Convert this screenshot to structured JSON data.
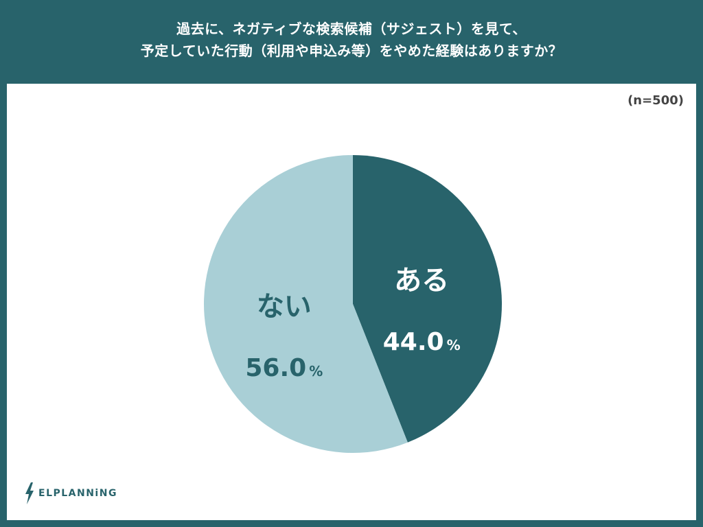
{
  "header": {
    "title_line1": "過去に、ネガティブな検索候補（サジェスト）を見て、",
    "title_line2": "予定していた行動（利用や申込み等）をやめた経験はありますか？"
  },
  "sample_size": "(n=500)",
  "brand": {
    "logo_text": "ELPLANNiNG",
    "icon": "lightning-bolt-icon"
  },
  "colors": {
    "header_bg": "#28636b",
    "slice_yes": "#28636b",
    "slice_no": "#a9cfd6",
    "label_yes": "#ffffff",
    "label_no": "#28636b"
  },
  "chart_data": {
    "type": "pie",
    "slices": [
      {
        "label": "ある",
        "value": 44.0,
        "value_text": "44.0",
        "unit": "%",
        "color": "#28636b",
        "text_color": "#ffffff"
      },
      {
        "label": "ない",
        "value": 56.0,
        "value_text": "56.0",
        "unit": "%",
        "color": "#a9cfd6",
        "text_color": "#28636b"
      }
    ],
    "start": "top",
    "direction": "clockwise"
  }
}
